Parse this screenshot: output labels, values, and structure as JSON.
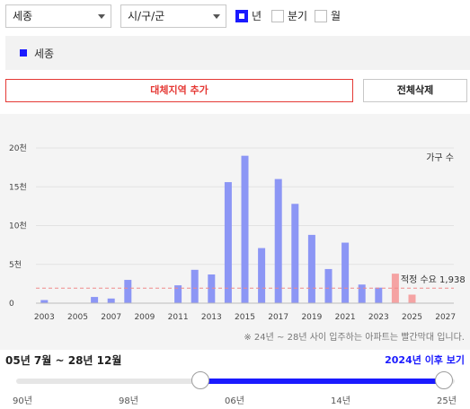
{
  "filters": {
    "region": "세종",
    "sigungu": "시/구/군",
    "periods": [
      {
        "label": "년",
        "checked": true
      },
      {
        "label": "분기",
        "checked": false
      },
      {
        "label": "월",
        "checked": false
      }
    ]
  },
  "legend": {
    "label": "세종",
    "color": "#1a1aff"
  },
  "buttons": {
    "add": "대체지역 추가",
    "clear": "전체삭제"
  },
  "chart_data": {
    "type": "bar",
    "unit_label": "가구 수",
    "x": [
      2003,
      2004,
      2005,
      2006,
      2007,
      2008,
      2009,
      2010,
      2011,
      2012,
      2013,
      2014,
      2015,
      2016,
      2017,
      2018,
      2019,
      2020,
      2021,
      2022,
      2023,
      2024,
      2025,
      2026,
      2027
    ],
    "values": [
      400,
      0,
      0,
      800,
      600,
      3000,
      0,
      0,
      2300,
      4300,
      3700,
      15600,
      19000,
      7100,
      16000,
      12800,
      8800,
      4400,
      7800,
      2400,
      2000,
      3800,
      1100,
      0,
      0
    ],
    "highlight_from": 2024,
    "xticks": [
      "2003",
      "2005",
      "2007",
      "2009",
      "2011",
      "2013",
      "2015",
      "2017",
      "2019",
      "2021",
      "2023",
      "2025",
      "2027"
    ],
    "yticks": [
      "0",
      "5천",
      "10천",
      "15천",
      "20천"
    ],
    "ylim": [
      0,
      20000
    ],
    "reference_line": {
      "value": 1938,
      "label": "적정 수요 1,938"
    },
    "colors": {
      "past": "#8c96f5",
      "future": "#f5a3a3",
      "reference": "#f08a8a"
    }
  },
  "note": "※ 24년 ~ 28년 사이 입주하는 아파트는 빨간막대 입니다.",
  "range": {
    "period_label": "05년 7월 ~ 28년 12월",
    "after_link": "2024년 이후 보기",
    "ticks": [
      "90년",
      "98년",
      "06년",
      "14년",
      "25년"
    ],
    "start_fraction": 0.42,
    "end_fraction": 0.975
  }
}
